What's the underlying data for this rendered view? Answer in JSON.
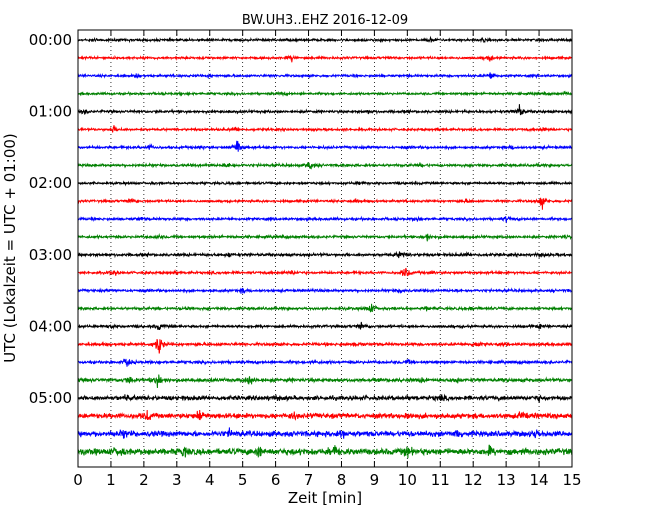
{
  "chart_data": {
    "type": "line",
    "title": "BW.UH3..EHZ 2016-12-09",
    "xlabel": "Zeit  [min]",
    "ylabel": "UTC (Lokalzeit = UTC + 01:00)",
    "xlim": [
      0,
      15
    ],
    "x_ticks": [
      "0",
      "1",
      "2",
      "3",
      "4",
      "5",
      "6",
      "7",
      "8",
      "9",
      "10",
      "11",
      "12",
      "13",
      "14",
      "15"
    ],
    "y_tick_labels": [
      "00:00",
      "01:00",
      "02:00",
      "03:00",
      "04:00",
      "05:00"
    ],
    "y_tick_rows": [
      0,
      4,
      8,
      12,
      16,
      20
    ],
    "grid": "vertical dotted",
    "row_minutes": 15,
    "colors": [
      "#000000",
      "#ff0000",
      "#0000ff",
      "#008000"
    ],
    "traces": [
      {
        "start": "00:00",
        "noise": 0.9,
        "events": [
          [
            0.5,
            1.2
          ],
          [
            10.7,
            1.6
          ],
          [
            12.3,
            1.0
          ]
        ]
      },
      {
        "start": "00:15",
        "noise": 0.9,
        "events": [
          [
            6.5,
            2.6
          ],
          [
            12.5,
            2.4
          ]
        ]
      },
      {
        "start": "00:30",
        "noise": 0.9,
        "events": [
          [
            1.8,
            1.6
          ],
          [
            4.0,
            1.0
          ],
          [
            12.55,
            4.0
          ]
        ]
      },
      {
        "start": "00:45",
        "noise": 0.9,
        "events": [
          [
            6.2,
            1.0
          ],
          [
            14.8,
            1.2
          ]
        ]
      },
      {
        "start": "01:00",
        "noise": 1.0,
        "events": [
          [
            0.2,
            2.0
          ],
          [
            8.8,
            1.4
          ],
          [
            13.4,
            6.0
          ]
        ]
      },
      {
        "start": "01:15",
        "noise": 0.9,
        "events": [
          [
            1.1,
            3.2
          ],
          [
            4.8,
            2.0
          ],
          [
            14.1,
            1.6
          ]
        ]
      },
      {
        "start": "01:30",
        "noise": 1.0,
        "events": [
          [
            2.2,
            1.8
          ],
          [
            3.8,
            1.6
          ],
          [
            4.85,
            8.0
          ],
          [
            13.2,
            1.4
          ]
        ]
      },
      {
        "start": "01:45",
        "noise": 1.0,
        "events": [
          [
            4.6,
            2.2
          ],
          [
            7.05,
            4.0
          ],
          [
            10.4,
            1.8
          ]
        ]
      },
      {
        "start": "02:00",
        "noise": 0.9,
        "events": [
          [
            8.6,
            1.2
          ]
        ]
      },
      {
        "start": "02:15",
        "noise": 0.9,
        "events": [
          [
            1.6,
            2.6
          ],
          [
            8.4,
            1.8
          ],
          [
            11.8,
            1.4
          ],
          [
            14.1,
            5.0
          ]
        ]
      },
      {
        "start": "02:30",
        "noise": 1.0,
        "events": [
          [
            1.9,
            1.4
          ],
          [
            10.3,
            1.6
          ],
          [
            13.0,
            1.6
          ]
        ]
      },
      {
        "start": "02:45",
        "noise": 1.0,
        "events": [
          [
            2.4,
            1.6
          ],
          [
            10.6,
            3.2
          ],
          [
            14.8,
            1.4
          ]
        ]
      },
      {
        "start": "03:00",
        "noise": 1.1,
        "events": [
          [
            4.6,
            1.8
          ],
          [
            9.8,
            3.2
          ],
          [
            11.8,
            1.6
          ],
          [
            14.0,
            1.6
          ]
        ]
      },
      {
        "start": "03:15",
        "noise": 1.0,
        "events": [
          [
            1.1,
            2.0
          ],
          [
            2.9,
            1.4
          ],
          [
            6.5,
            1.8
          ],
          [
            9.95,
            5.0
          ],
          [
            10.8,
            1.6
          ]
        ]
      },
      {
        "start": "03:30",
        "noise": 1.0,
        "events": [
          [
            5.0,
            1.8
          ],
          [
            9.8,
            2.2
          ]
        ]
      },
      {
        "start": "03:45",
        "noise": 1.0,
        "events": [
          [
            3.3,
            1.6
          ],
          [
            8.9,
            4.0
          ],
          [
            10.6,
            1.6
          ],
          [
            12.0,
            1.4
          ]
        ]
      },
      {
        "start": "04:00",
        "noise": 1.0,
        "events": [
          [
            1.0,
            1.4
          ],
          [
            2.45,
            3.0
          ],
          [
            8.6,
            3.0
          ],
          [
            14.0,
            2.0
          ]
        ]
      },
      {
        "start": "04:15",
        "noise": 1.1,
        "events": [
          [
            2.45,
            10.0
          ],
          [
            8.5,
            1.6
          ],
          [
            12.1,
            2.0
          ]
        ]
      },
      {
        "start": "04:30",
        "noise": 1.1,
        "events": [
          [
            1.5,
            5.0
          ],
          [
            7.2,
            1.4
          ],
          [
            10.0,
            1.4
          ]
        ]
      },
      {
        "start": "04:45",
        "noise": 1.4,
        "events": [
          [
            1.55,
            3.8
          ],
          [
            2.45,
            7.0
          ],
          [
            5.2,
            4.5
          ],
          [
            10.5,
            2.0
          ],
          [
            11.5,
            2.0
          ]
        ]
      },
      {
        "start": "05:00",
        "noise": 1.7,
        "events": [
          [
            1.5,
            2.0
          ],
          [
            6.0,
            2.0
          ],
          [
            11.0,
            2.0
          ],
          [
            14.0,
            2.0
          ]
        ]
      },
      {
        "start": "05:15",
        "noise": 2.0,
        "events": [
          [
            2.1,
            4.0
          ],
          [
            3.7,
            5.0
          ],
          [
            6.5,
            3.0
          ],
          [
            10.0,
            3.0
          ],
          [
            13.5,
            3.0
          ]
        ]
      },
      {
        "start": "05:30",
        "noise": 2.2,
        "events": [
          [
            1.4,
            3.0
          ],
          [
            4.6,
            2.5
          ],
          [
            8.0,
            3.5
          ],
          [
            11.5,
            3.0
          ],
          [
            13.9,
            3.5
          ]
        ]
      },
      {
        "start": "05:45",
        "noise": 2.5,
        "events": [
          [
            1.2,
            3.0
          ],
          [
            3.2,
            3.0
          ],
          [
            5.5,
            4.0
          ],
          [
            7.8,
            4.0
          ],
          [
            10.0,
            3.5
          ],
          [
            12.5,
            3.0
          ]
        ]
      }
    ]
  }
}
